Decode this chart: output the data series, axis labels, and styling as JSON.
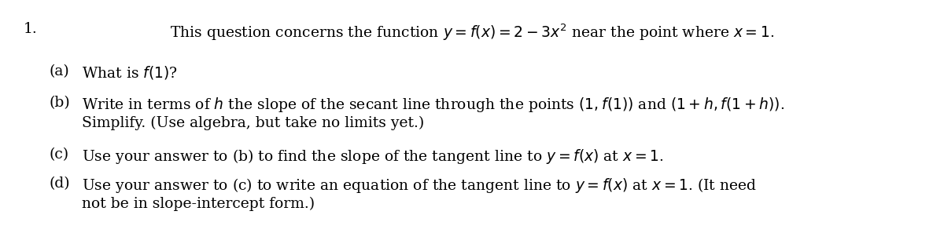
{
  "number": "1.",
  "intro": "This question concerns the function $y = f(x) = 2 - 3x^2$ near the point where $x = 1$.",
  "part_a_label": "(a)",
  "part_a_text": "What is $f(1)$?",
  "part_b_label": "(b)",
  "part_b_line1": "Write in terms of $h$ the slope of the secant line through the points $(1, f(1))$ and $(1+h, f(1+h))$.",
  "part_b_line2": "Simplify. (Use algebra, but take no limits yet.)",
  "part_c_label": "(c)",
  "part_c_text": "Use your answer to (b) to find the slope of the tangent line to $y = f(x)$ at $x = 1$.",
  "part_d_label": "(d)",
  "part_d_line1": "Use your answer to (c) to write an equation of the tangent line to $y = f(x)$ at $x = 1$. (It need",
  "part_d_line2": "not be in slope-intercept form.)",
  "bg_color": "#ffffff",
  "text_color": "#000000",
  "fontsize": 13.5,
  "font_family": "serif"
}
